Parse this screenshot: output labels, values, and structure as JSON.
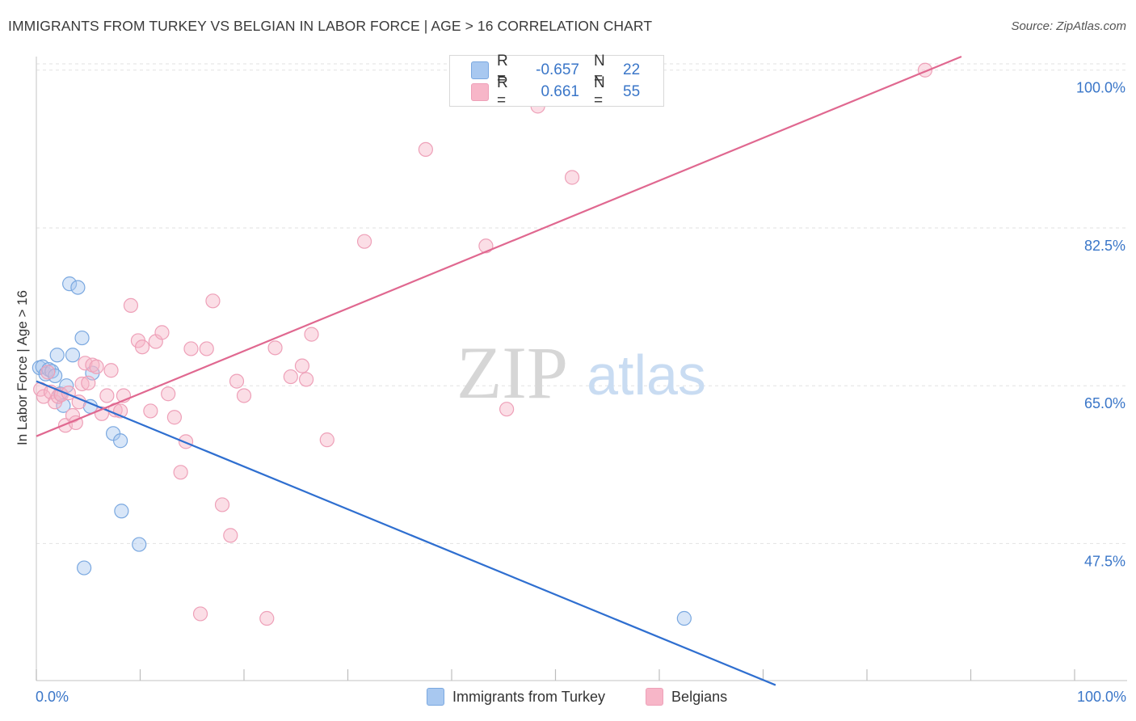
{
  "header": {
    "title": "IMMIGRANTS FROM TURKEY VS BELGIAN IN LABOR FORCE | AGE > 16 CORRELATION CHART",
    "source": "Source: ZipAtlas.com"
  },
  "watermark": {
    "zip": "ZIP",
    "atlas": "atlas"
  },
  "stats": [
    {
      "r_label": "R =",
      "r_value": "-0.657",
      "n_label": "N =",
      "n_value": "22",
      "color": "#a8c8f0"
    },
    {
      "r_label": "R =",
      "r_value": "0.661",
      "n_label": "N =",
      "n_value": "55",
      "color": "#f7b6c8"
    }
  ],
  "legend": [
    {
      "label": "Immigrants from Turkey",
      "color": "#a8c8f0"
    },
    {
      "label": "Belgians",
      "color": "#f7b6c8"
    }
  ],
  "colors": {
    "turkey_line": "#2f6fd0",
    "belgian_line": "#e06890",
    "turkey_fill": "#a8c8f0",
    "belgian_fill": "#f7b6c8",
    "tick_text": "#3a76c8"
  },
  "chart_data": {
    "type": "scatter",
    "title": "IMMIGRANTS FROM TURKEY VS BELGIAN IN LABOR FORCE | AGE > 16 CORRELATION CHART",
    "xlabel": "",
    "ylabel": "In Labor Force | Age > 16",
    "xlim": [
      0,
      100
    ],
    "ylim": [
      32.3,
      101.5
    ],
    "x_tick_labels": [
      "0.0%",
      "100.0%"
    ],
    "y_ticks": [
      47.5,
      65.0,
      82.5,
      100.0
    ],
    "y_tick_labels": [
      "47.5%",
      "65.0%",
      "82.5%",
      "100.0%"
    ],
    "grid": true,
    "legend_position": "bottom-center",
    "series": [
      {
        "name": "Immigrants from Turkey",
        "r": -0.657,
        "n": 22,
        "trend": {
          "x0": 0,
          "y0": 65.5,
          "x1": 71.2,
          "y1": 31.8
        },
        "x": [
          0.3,
          0.6,
          0.9,
          1.2,
          1.5,
          1.8,
          2.0,
          2.3,
          2.6,
          2.9,
          3.2,
          3.5,
          4.0,
          4.4,
          4.6,
          5.2,
          5.4,
          7.4,
          8.1,
          8.2,
          9.9,
          62.4
        ],
        "y": [
          67.0,
          67.1,
          66.3,
          66.8,
          66.6,
          66.1,
          68.4,
          64.1,
          62.8,
          65.0,
          76.3,
          68.4,
          75.9,
          70.3,
          44.8,
          62.7,
          66.4,
          59.7,
          58.9,
          51.1,
          47.4,
          39.2
        ]
      },
      {
        "name": "Belgians",
        "r": 0.661,
        "n": 55,
        "trend": {
          "x0": 0,
          "y0": 59.4,
          "x1": 89.1,
          "y1": 101.5
        },
        "x": [
          0.4,
          0.7,
          1.1,
          1.4,
          1.8,
          2.1,
          2.4,
          2.8,
          3.1,
          3.5,
          3.8,
          4.1,
          4.4,
          4.7,
          5.0,
          5.4,
          5.8,
          6.3,
          6.8,
          7.2,
          7.6,
          8.1,
          8.4,
          9.1,
          9.8,
          10.2,
          11.0,
          11.5,
          12.1,
          12.7,
          13.3,
          13.9,
          14.4,
          14.9,
          15.8,
          16.4,
          17.0,
          17.9,
          18.7,
          19.3,
          20.0,
          22.2,
          23.0,
          24.5,
          25.6,
          26.0,
          26.5,
          28.0,
          31.6,
          37.5,
          43.3,
          45.3,
          48.3,
          51.6,
          85.6
        ],
        "y": [
          64.6,
          63.8,
          66.5,
          64.3,
          63.2,
          63.8,
          64.0,
          60.6,
          64.2,
          61.7,
          60.9,
          63.2,
          65.2,
          67.5,
          65.3,
          67.3,
          67.1,
          61.9,
          63.9,
          66.7,
          62.3,
          62.2,
          63.9,
          73.9,
          70.0,
          69.3,
          62.2,
          69.9,
          70.9,
          64.1,
          61.5,
          55.4,
          58.8,
          69.1,
          39.7,
          69.1,
          74.4,
          51.8,
          48.4,
          65.5,
          63.9,
          39.2,
          69.2,
          66.0,
          67.2,
          65.7,
          70.7,
          59.0,
          81.0,
          91.2,
          80.5,
          62.4,
          96.0,
          88.1,
          100.0
        ]
      }
    ]
  }
}
